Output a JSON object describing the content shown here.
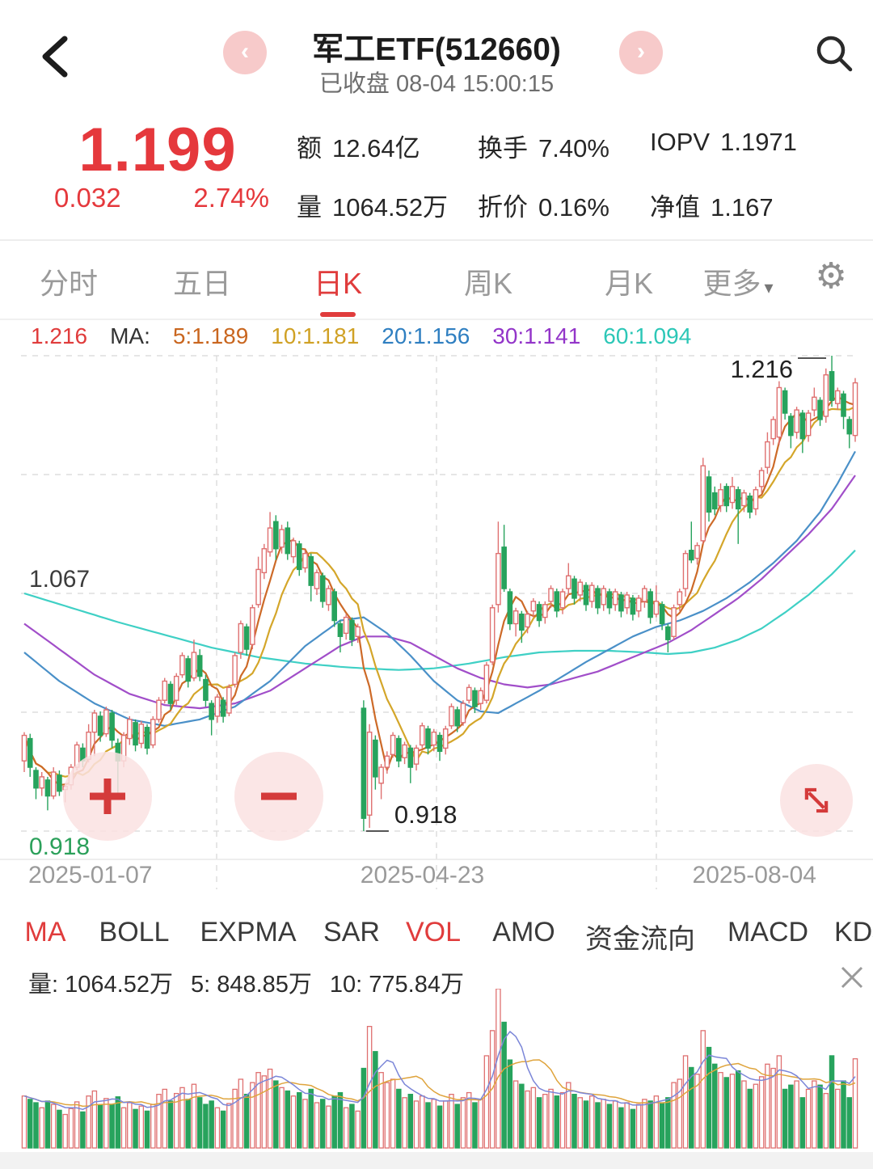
{
  "header": {
    "title": "军工ETF(512660)",
    "status": "已收盘 08-04 15:00:15",
    "back": "‹",
    "prev": "‹",
    "next": "›"
  },
  "quote": {
    "price": "1.199",
    "change": "0.032",
    "change_pct": "2.74%",
    "stats": [
      {
        "label": "额",
        "value": "12.64亿"
      },
      {
        "label": "换手",
        "value": "7.40%"
      },
      {
        "label": "IOPV",
        "value": "1.1971"
      },
      {
        "label": "量",
        "value": "1064.52万"
      },
      {
        "label": "折价",
        "value": "0.16%"
      },
      {
        "label": "净值",
        "value": "1.167"
      }
    ]
  },
  "period_tabs": {
    "items": [
      "分时",
      "五日",
      "日K",
      "周K",
      "月K",
      "更多"
    ],
    "active": "日K",
    "more_triangle": "◢"
  },
  "ma_legend": {
    "high": "1.216",
    "prefix": "MA:",
    "ma5": "5:1.189",
    "ma10": "10:1.181",
    "ma20": "20:1.156",
    "ma30": "30:1.141",
    "ma60": "60:1.094"
  },
  "indicator_tabs": {
    "items": [
      "MA",
      "BOLL",
      "EXPMA",
      "SAR",
      "VOL",
      "AMO",
      "资金流向",
      "MACD",
      "KDJ"
    ],
    "active": [
      "MA",
      "VOL"
    ]
  },
  "volume_legend": {
    "vol_label": "量:",
    "vol": "1064.52万",
    "ma5_label": "5:",
    "ma5": "848.85万",
    "ma10_label": "10:",
    "ma10": "775.84万"
  },
  "x_axis_labels": [
    "2025-01-07",
    "2025-04-23",
    "2025-08-04"
  ],
  "chart_data": {
    "type": "candlestick",
    "title": "军工ETF(512660) 日K",
    "y_axis": {
      "max": 1.216,
      "min": 0.918,
      "max_label": "1.216",
      "mid_label": "1.067",
      "min_label": "0.918",
      "gridlines": [
        1.216,
        1.1415,
        1.067,
        0.9925,
        0.918
      ]
    },
    "x_labels": [
      "2025-01-07",
      "2025-04-23",
      "2025-08-04"
    ],
    "annotations": {
      "high": "1.216",
      "low": "0.918"
    },
    "legend_values": {
      "ma5": 1.189,
      "ma10": 1.181,
      "ma20": 1.156,
      "ma30": 1.141,
      "ma60": 1.094
    },
    "colors": {
      "up": "#df7070",
      "down": "#27a35d",
      "ma5": "#cd6a28",
      "ma10": "#d4a62a",
      "ma20": "#4a90c8",
      "ma30": "#a14ec9",
      "ma60": "#3fd0c5",
      "vol_ma5": "#7b86d8",
      "vol_ma10": "#dfa43c",
      "accent_red": "#e03c3c",
      "price_red": "#e5383c",
      "green_label": "#2ba05a"
    },
    "volume": {
      "unit": "万",
      "max_scale": 1900,
      "current": 1064.52,
      "ma5": 848.85,
      "ma10": 775.84
    },
    "candles": [
      [
        0.962,
        0.98,
        0.955,
        0.978,
        620
      ],
      [
        0.976,
        0.979,
        0.952,
        0.958,
        580
      ],
      [
        0.956,
        0.958,
        0.938,
        0.945,
        540
      ],
      [
        0.945,
        0.955,
        0.94,
        0.952,
        480
      ],
      [
        0.95,
        0.952,
        0.931,
        0.94,
        560
      ],
      [
        0.94,
        0.958,
        0.938,
        0.955,
        520
      ],
      [
        0.953,
        0.956,
        0.94,
        0.943,
        450
      ],
      [
        0.944,
        0.948,
        0.936,
        0.946,
        400
      ],
      [
        0.947,
        0.96,
        0.944,
        0.958,
        470
      ],
      [
        0.958,
        0.974,
        0.956,
        0.972,
        550
      ],
      [
        0.97,
        0.973,
        0.958,
        0.962,
        430
      ],
      [
        0.963,
        0.985,
        0.961,
        0.98,
        620
      ],
      [
        0.98,
        0.994,
        0.965,
        0.992,
        680
      ],
      [
        0.99,
        0.993,
        0.974,
        0.978,
        510
      ],
      [
        0.979,
        0.996,
        0.977,
        0.994,
        590
      ],
      [
        0.992,
        0.994,
        0.97,
        0.975,
        520
      ],
      [
        0.973,
        0.976,
        0.94,
        0.962,
        610
      ],
      [
        0.962,
        0.98,
        0.958,
        0.978,
        480
      ],
      [
        0.976,
        0.99,
        0.972,
        0.988,
        540
      ],
      [
        0.986,
        0.988,
        0.968,
        0.972,
        460
      ],
      [
        0.973,
        0.987,
        0.97,
        0.985,
        500
      ],
      [
        0.983,
        0.985,
        0.966,
        0.97,
        440
      ],
      [
        0.972,
        0.99,
        0.97,
        0.988,
        520
      ],
      [
        0.988,
        1.002,
        0.986,
        1.0,
        640
      ],
      [
        1.0,
        1.014,
        0.998,
        1.012,
        700
      ],
      [
        1.01,
        1.012,
        0.994,
        0.998,
        560
      ],
      [
        1.0,
        1.017,
        0.997,
        1.015,
        650
      ],
      [
        1.016,
        1.03,
        1.014,
        1.028,
        720
      ],
      [
        1.026,
        1.028,
        1.008,
        1.012,
        580
      ],
      [
        1.014,
        1.038,
        1.012,
        1.03,
        760
      ],
      [
        1.028,
        1.032,
        1.012,
        1.015,
        600
      ],
      [
        1.013,
        1.016,
        0.996,
        1.0,
        520
      ],
      [
        0.998,
        1.0,
        0.978,
        0.988,
        560
      ],
      [
        0.99,
        1.004,
        0.986,
        1.002,
        480
      ],
      [
        1.0,
        1.002,
        0.986,
        0.99,
        440
      ],
      [
        0.992,
        1.01,
        0.99,
        1.008,
        530
      ],
      [
        1.01,
        1.03,
        1.008,
        1.028,
        700
      ],
      [
        1.03,
        1.05,
        1.026,
        1.048,
        820
      ],
      [
        1.046,
        1.048,
        1.028,
        1.032,
        640
      ],
      [
        1.035,
        1.06,
        1.032,
        1.058,
        780
      ],
      [
        1.06,
        1.09,
        1.058,
        1.082,
        900
      ],
      [
        1.08,
        1.098,
        1.076,
        1.095,
        860
      ],
      [
        1.093,
        1.118,
        1.09,
        1.108,
        940
      ],
      [
        1.112,
        1.116,
        1.088,
        1.095,
        800
      ],
      [
        1.096,
        1.11,
        1.092,
        1.107,
        720
      ],
      [
        1.108,
        1.112,
        1.088,
        1.092,
        680
      ],
      [
        1.09,
        1.102,
        1.086,
        1.1,
        620
      ],
      [
        1.098,
        1.1,
        1.078,
        1.082,
        660
      ],
      [
        1.083,
        1.094,
        1.08,
        1.092,
        580
      ],
      [
        1.09,
        1.092,
        1.062,
        1.072,
        700
      ],
      [
        1.07,
        1.082,
        1.066,
        1.08,
        540
      ],
      [
        1.078,
        1.08,
        1.058,
        1.062,
        580
      ],
      [
        1.06,
        1.072,
        1.056,
        1.07,
        500
      ],
      [
        1.068,
        1.07,
        1.046,
        1.05,
        620
      ],
      [
        1.048,
        1.05,
        1.03,
        1.04,
        660
      ],
      [
        1.042,
        1.054,
        1.038,
        1.052,
        480
      ],
      [
        1.05,
        1.052,
        1.034,
        1.038,
        520
      ],
      [
        1.04,
        1.048,
        1.036,
        1.046,
        440
      ],
      [
        0.995,
        1.0,
        0.918,
        0.926,
        950
      ],
      [
        0.928,
        0.985,
        0.92,
        0.98,
        1450
      ],
      [
        0.975,
        0.978,
        0.944,
        0.952,
        1150
      ],
      [
        0.948,
        0.96,
        0.938,
        0.958,
        900
      ],
      [
        0.958,
        0.968,
        0.954,
        0.965,
        780
      ],
      [
        0.966,
        0.98,
        0.964,
        0.978,
        820
      ],
      [
        0.976,
        0.978,
        0.958,
        0.962,
        700
      ],
      [
        0.964,
        0.974,
        0.96,
        0.972,
        600
      ],
      [
        0.97,
        0.972,
        0.948,
        0.958,
        640
      ],
      [
        0.96,
        0.972,
        0.956,
        0.97,
        560
      ],
      [
        0.972,
        0.986,
        0.97,
        0.984,
        620
      ],
      [
        0.982,
        0.984,
        0.966,
        0.97,
        540
      ],
      [
        0.972,
        0.982,
        0.968,
        0.98,
        580
      ],
      [
        0.978,
        0.98,
        0.962,
        0.968,
        500
      ],
      [
        0.97,
        0.984,
        0.966,
        0.982,
        560
      ],
      [
        0.984,
        0.998,
        0.982,
        0.996,
        640
      ],
      [
        0.994,
        0.996,
        0.98,
        0.984,
        520
      ],
      [
        0.986,
        1.0,
        0.984,
        0.998,
        600
      ],
      [
        1.0,
        1.01,
        0.998,
        1.008,
        660
      ],
      [
        1.006,
        1.008,
        0.992,
        0.996,
        540
      ],
      [
        0.998,
        1.008,
        0.994,
        1.006,
        580
      ],
      [
        1.0,
        1.024,
        0.998,
        1.022,
        1100
      ],
      [
        1.024,
        1.06,
        1.022,
        1.058,
        1400
      ],
      [
        1.06,
        1.112,
        1.055,
        1.092,
        1900
      ],
      [
        1.096,
        1.11,
        1.068,
        1.07,
        1500
      ],
      [
        1.068,
        1.07,
        1.044,
        1.048,
        1050
      ],
      [
        1.048,
        1.058,
        1.04,
        1.056,
        800
      ],
      [
        1.054,
        1.056,
        1.036,
        1.044,
        760
      ],
      [
        1.046,
        1.056,
        1.042,
        1.054,
        680
      ],
      [
        1.056,
        1.064,
        1.052,
        1.062,
        720
      ],
      [
        1.06,
        1.062,
        1.046,
        1.05,
        600
      ],
      [
        1.052,
        1.062,
        1.048,
        1.06,
        640
      ],
      [
        1.062,
        1.072,
        1.058,
        1.07,
        700
      ],
      [
        1.068,
        1.07,
        1.052,
        1.056,
        620
      ],
      [
        1.058,
        1.07,
        1.054,
        1.068,
        660
      ],
      [
        1.07,
        1.086,
        1.066,
        1.078,
        780
      ],
      [
        1.076,
        1.078,
        1.06,
        1.064,
        640
      ],
      [
        1.066,
        1.076,
        1.062,
        1.074,
        600
      ],
      [
        1.072,
        1.074,
        1.056,
        1.06,
        560
      ],
      [
        1.062,
        1.074,
        1.058,
        1.072,
        620
      ],
      [
        1.07,
        1.072,
        1.054,
        1.058,
        540
      ],
      [
        1.06,
        1.072,
        1.056,
        1.07,
        580
      ],
      [
        1.068,
        1.07,
        1.054,
        1.058,
        520
      ],
      [
        1.06,
        1.07,
        1.056,
        1.068,
        560
      ],
      [
        1.066,
        1.068,
        1.052,
        1.056,
        480
      ],
      [
        1.058,
        1.068,
        1.054,
        1.066,
        540
      ],
      [
        1.064,
        1.066,
        1.05,
        1.054,
        460
      ],
      [
        1.056,
        1.066,
        1.052,
        1.064,
        520
      ],
      [
        1.062,
        1.072,
        1.058,
        1.07,
        580
      ],
      [
        1.068,
        1.07,
        1.048,
        1.052,
        560
      ],
      [
        1.054,
        1.072,
        1.052,
        1.062,
        620
      ],
      [
        1.06,
        1.062,
        1.044,
        1.048,
        540
      ],
      [
        1.046,
        1.048,
        1.03,
        1.038,
        600
      ],
      [
        1.04,
        1.06,
        1.038,
        1.058,
        780
      ],
      [
        1.06,
        1.07,
        1.056,
        1.068,
        820
      ],
      [
        1.07,
        1.094,
        1.065,
        1.092,
        1100
      ],
      [
        1.094,
        1.112,
        1.086,
        1.088,
        960
      ],
      [
        1.089,
        1.099,
        1.085,
        1.097,
        880
      ],
      [
        1.1,
        1.152,
        1.098,
        1.147,
        1400
      ],
      [
        1.14,
        1.144,
        1.112,
        1.118,
        1200
      ],
      [
        1.13,
        1.134,
        1.116,
        1.12,
        1000
      ],
      [
        1.122,
        1.136,
        1.118,
        1.132,
        900
      ],
      [
        1.134,
        1.136,
        1.118,
        1.122,
        840
      ],
      [
        1.124,
        1.14,
        1.12,
        1.134,
        880
      ],
      [
        1.132,
        1.134,
        1.098,
        1.12,
        920
      ],
      [
        1.122,
        1.132,
        1.118,
        1.13,
        800
      ],
      [
        1.128,
        1.13,
        1.114,
        1.118,
        700
      ],
      [
        1.12,
        1.134,
        1.116,
        1.132,
        760
      ],
      [
        1.134,
        1.146,
        1.13,
        1.144,
        850
      ],
      [
        1.146,
        1.168,
        1.142,
        1.162,
        1000
      ],
      [
        1.164,
        1.178,
        1.16,
        1.176,
        950
      ],
      [
        1.165,
        1.2,
        1.16,
        1.196,
        1100
      ],
      [
        1.194,
        1.196,
        1.176,
        1.18,
        700
      ],
      [
        1.178,
        1.18,
        1.158,
        1.166,
        750
      ],
      [
        1.168,
        1.184,
        1.164,
        1.182,
        800
      ],
      [
        1.18,
        1.182,
        1.155,
        1.164,
        600
      ],
      [
        1.166,
        1.182,
        1.162,
        1.18,
        700
      ],
      [
        1.182,
        1.196,
        1.178,
        1.19,
        800
      ],
      [
        1.188,
        1.19,
        1.172,
        1.176,
        750
      ],
      [
        1.178,
        1.208,
        1.174,
        1.204,
        650
      ],
      [
        1.206,
        1.216,
        1.184,
        1.188,
        1100
      ],
      [
        1.186,
        1.196,
        1.182,
        1.194,
        700
      ],
      [
        1.192,
        1.194,
        1.17,
        1.178,
        800
      ],
      [
        1.176,
        1.178,
        1.158,
        1.167,
        600
      ],
      [
        1.166,
        1.202,
        1.162,
        1.199,
        1064
      ]
    ],
    "ma_overlays": {
      "ma20": [
        [
          0,
          1.03
        ],
        [
          6,
          1.012
        ],
        [
          12,
          0.998
        ],
        [
          18,
          0.988
        ],
        [
          24,
          0.984
        ],
        [
          30,
          0.988
        ],
        [
          36,
          0.996
        ],
        [
          42,
          1.012
        ],
        [
          48,
          1.034
        ],
        [
          54,
          1.05
        ],
        [
          58,
          1.052
        ],
        [
          62,
          1.042
        ],
        [
          66,
          1.028
        ],
        [
          70,
          1.012
        ],
        [
          74,
          1.0
        ],
        [
          78,
          0.993
        ],
        [
          81,
          0.992
        ],
        [
          84,
          0.998
        ],
        [
          88,
          1.006
        ],
        [
          92,
          1.015
        ],
        [
          96,
          1.024
        ],
        [
          100,
          1.032
        ],
        [
          104,
          1.04
        ],
        [
          108,
          1.046
        ],
        [
          112,
          1.05
        ],
        [
          116,
          1.056
        ],
        [
          120,
          1.064
        ],
        [
          124,
          1.074
        ],
        [
          128,
          1.086
        ],
        [
          132,
          1.1
        ],
        [
          136,
          1.118
        ],
        [
          139,
          1.136
        ],
        [
          142,
          1.156
        ]
      ],
      "ma30": [
        [
          0,
          1.048
        ],
        [
          6,
          1.032
        ],
        [
          12,
          1.016
        ],
        [
          18,
          1.004
        ],
        [
          24,
          0.997
        ],
        [
          30,
          0.995
        ],
        [
          36,
          0.998
        ],
        [
          42,
          1.006
        ],
        [
          48,
          1.02
        ],
        [
          54,
          1.034
        ],
        [
          58,
          1.04
        ],
        [
          62,
          1.04
        ],
        [
          66,
          1.036
        ],
        [
          70,
          1.028
        ],
        [
          74,
          1.02
        ],
        [
          78,
          1.014
        ],
        [
          82,
          1.01
        ],
        [
          86,
          1.008
        ],
        [
          90,
          1.01
        ],
        [
          94,
          1.014
        ],
        [
          98,
          1.018
        ],
        [
          102,
          1.024
        ],
        [
          106,
          1.03
        ],
        [
          110,
          1.036
        ],
        [
          114,
          1.044
        ],
        [
          118,
          1.054
        ],
        [
          122,
          1.064
        ],
        [
          126,
          1.076
        ],
        [
          130,
          1.09
        ],
        [
          134,
          1.104
        ],
        [
          138,
          1.12
        ],
        [
          142,
          1.141
        ]
      ],
      "ma60": [
        [
          0,
          1.067
        ],
        [
          8,
          1.058
        ],
        [
          16,
          1.049
        ],
        [
          24,
          1.041
        ],
        [
          32,
          1.033
        ],
        [
          40,
          1.027
        ],
        [
          48,
          1.023
        ],
        [
          54,
          1.021
        ],
        [
          58,
          1.02
        ],
        [
          64,
          1.019
        ],
        [
          70,
          1.02
        ],
        [
          76,
          1.023
        ],
        [
          82,
          1.027
        ],
        [
          88,
          1.03
        ],
        [
          94,
          1.031
        ],
        [
          100,
          1.031
        ],
        [
          106,
          1.03
        ],
        [
          110,
          1.029
        ],
        [
          114,
          1.03
        ],
        [
          118,
          1.033
        ],
        [
          122,
          1.038
        ],
        [
          126,
          1.045
        ],
        [
          130,
          1.055
        ],
        [
          134,
          1.066
        ],
        [
          138,
          1.079
        ],
        [
          142,
          1.094
        ]
      ]
    }
  }
}
